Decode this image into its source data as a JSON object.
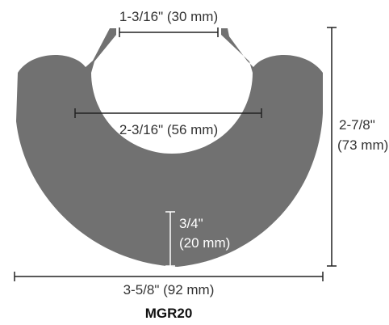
{
  "diagram": {
    "model_name": "MGR20",
    "dimensions": {
      "opening_width": "1-3/16\" (30 mm)",
      "inner_diameter": "2-3/16\" (56 mm)",
      "height_line1": "2-7/8\"",
      "height_line2": "(73 mm)",
      "thickness_line1": "3/4\"",
      "thickness_line2": "(20 mm)",
      "overall_width": "3-5/8\" (92 mm)"
    },
    "colors": {
      "profile_fill": "#717171",
      "dimension_line": "#222222",
      "background": "#ffffff"
    }
  }
}
